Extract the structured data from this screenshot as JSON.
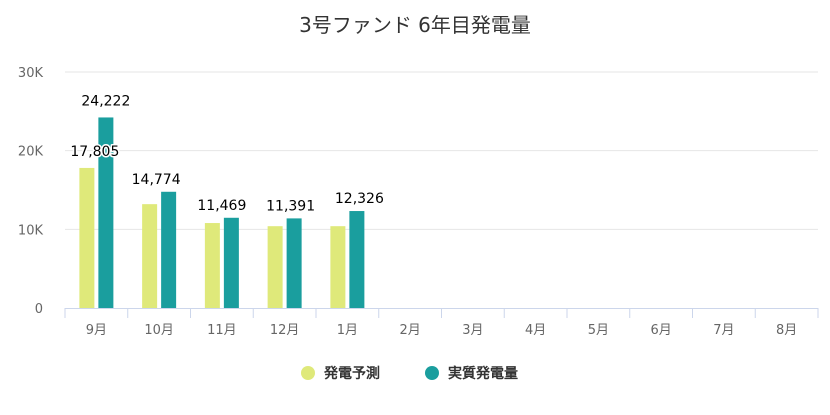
{
  "chart_data": {
    "type": "bar",
    "title": "3号ファンド 6年目発電量",
    "categories": [
      "9月",
      "10月",
      "11月",
      "12月",
      "1月",
      "2月",
      "3月",
      "4月",
      "5月",
      "6月",
      "7月",
      "8月"
    ],
    "series": [
      {
        "name": "発電予測",
        "color": "#dfe97a",
        "values": [
          17805,
          13200,
          10800,
          10400,
          10400,
          null,
          null,
          null,
          null,
          null,
          null,
          null
        ],
        "show_labels": false
      },
      {
        "name": "実質発電量",
        "color": "#1a9e9e",
        "values": [
          24222,
          14774,
          11469,
          11391,
          12326,
          null,
          null,
          null,
          null,
          null,
          null,
          null
        ],
        "show_labels": true
      }
    ],
    "data_labels": [
      "17,805",
      "24,222",
      "14,774",
      "11,469",
      "11,391",
      "12,326"
    ],
    "ylim": [
      0,
      30000
    ],
    "yticks": [
      0,
      10000,
      20000,
      30000
    ],
    "ytick_labels": [
      "0",
      "10K",
      "20K",
      "30K"
    ],
    "grid": true,
    "legend": "bottom-center"
  }
}
